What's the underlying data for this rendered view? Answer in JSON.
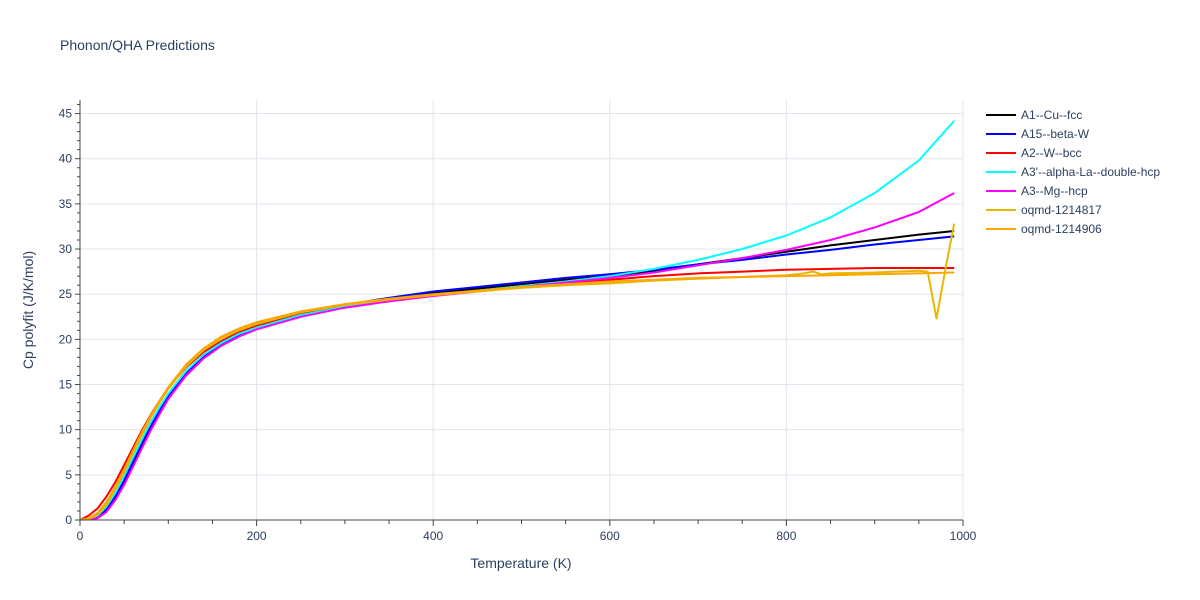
{
  "chart_data": {
    "type": "line",
    "title": "Phonon/QHA Predictions",
    "xlabel": "Temperature (K)",
    "ylabel": "Cp polyfit (J/K/mol)",
    "xlim": [
      0,
      1000
    ],
    "ylim": [
      0,
      46.5
    ],
    "x_ticks": [
      0,
      200,
      400,
      600,
      800,
      1000
    ],
    "y_ticks": [
      0,
      5,
      10,
      15,
      20,
      25,
      30,
      35,
      40,
      45
    ],
    "grid": true,
    "legend_position": "right",
    "series": [
      {
        "name": "A1--Cu--fcc",
        "color": "#000000",
        "x": [
          0,
          10,
          20,
          30,
          40,
          50,
          60,
          70,
          80,
          90,
          100,
          120,
          140,
          160,
          180,
          200,
          250,
          300,
          350,
          400,
          450,
          500,
          550,
          600,
          650,
          700,
          750,
          800,
          850,
          900,
          950,
          990
        ],
        "y": [
          0,
          0.05,
          0.3,
          1.1,
          2.5,
          4.3,
          6.3,
          8.3,
          10.2,
          11.9,
          13.5,
          16.0,
          17.9,
          19.3,
          20.4,
          21.2,
          22.7,
          23.7,
          24.4,
          25.1,
          25.6,
          26.1,
          26.6,
          27.0,
          27.6,
          28.3,
          29.0,
          29.7,
          30.4,
          31.0,
          31.6,
          32.0
        ]
      },
      {
        "name": "A15--beta-W",
        "color": "#0000ff",
        "x": [
          0,
          10,
          20,
          30,
          40,
          50,
          60,
          70,
          80,
          90,
          100,
          120,
          140,
          160,
          180,
          200,
          250,
          300,
          350,
          400,
          450,
          500,
          550,
          600,
          650,
          700,
          750,
          800,
          850,
          900,
          950,
          990
        ],
        "y": [
          0,
          0.05,
          0.3,
          1.2,
          2.6,
          4.4,
          6.5,
          8.5,
          10.4,
          12.1,
          13.7,
          16.2,
          18.1,
          19.5,
          20.5,
          21.3,
          22.8,
          23.8,
          24.6,
          25.3,
          25.8,
          26.3,
          26.8,
          27.2,
          27.7,
          28.3,
          28.8,
          29.4,
          29.9,
          30.5,
          31.0,
          31.4
        ]
      },
      {
        "name": "A2--W--bcc",
        "color": "#ff0000",
        "x": [
          0,
          10,
          20,
          30,
          40,
          50,
          60,
          70,
          80,
          90,
          100,
          120,
          140,
          160,
          180,
          200,
          250,
          300,
          350,
          400,
          450,
          500,
          550,
          600,
          650,
          700,
          750,
          800,
          850,
          900,
          950,
          990
        ],
        "y": [
          0,
          0.5,
          1.3,
          2.6,
          4.2,
          6.1,
          8.0,
          9.9,
          11.6,
          13.2,
          14.6,
          16.9,
          18.6,
          19.8,
          20.8,
          21.5,
          22.9,
          23.8,
          24.4,
          24.9,
          25.4,
          25.8,
          26.2,
          26.6,
          27.0,
          27.3,
          27.5,
          27.7,
          27.8,
          27.9,
          27.9,
          27.9
        ]
      },
      {
        "name": "A3'--alpha-La--double-hcp",
        "color": "#00ffff",
        "x": [
          0,
          10,
          20,
          30,
          40,
          50,
          60,
          70,
          80,
          90,
          100,
          120,
          140,
          160,
          180,
          200,
          250,
          300,
          350,
          400,
          450,
          500,
          550,
          600,
          650,
          700,
          750,
          800,
          850,
          900,
          950,
          990
        ],
        "y": [
          0,
          0.1,
          0.5,
          1.5,
          3.0,
          4.9,
          6.9,
          8.9,
          10.8,
          12.5,
          14.0,
          16.5,
          18.3,
          19.6,
          20.6,
          21.3,
          22.7,
          23.6,
          24.3,
          24.9,
          25.4,
          25.9,
          26.4,
          27.0,
          27.8,
          28.8,
          30.0,
          31.5,
          33.5,
          36.2,
          39.8,
          44.2
        ]
      },
      {
        "name": "A3--Mg--hcp",
        "color": "#ff00ff",
        "x": [
          0,
          10,
          20,
          30,
          40,
          50,
          60,
          70,
          80,
          90,
          100,
          120,
          140,
          160,
          180,
          200,
          250,
          300,
          350,
          400,
          450,
          500,
          550,
          600,
          650,
          700,
          750,
          800,
          850,
          900,
          950,
          990
        ],
        "y": [
          0,
          0.05,
          0.2,
          0.9,
          2.2,
          3.9,
          5.9,
          7.9,
          9.9,
          11.7,
          13.4,
          16.0,
          17.9,
          19.3,
          20.3,
          21.1,
          22.5,
          23.5,
          24.2,
          24.8,
          25.3,
          25.8,
          26.3,
          26.8,
          27.4,
          28.2,
          29.0,
          29.9,
          31.0,
          32.4,
          34.1,
          36.2
        ]
      },
      {
        "name": "oqmd-1214817",
        "color": "#e6b800",
        "x": [
          0,
          10,
          20,
          30,
          40,
          50,
          60,
          70,
          80,
          90,
          100,
          120,
          140,
          160,
          180,
          200,
          250,
          300,
          350,
          400,
          450,
          500,
          550,
          600,
          650,
          700,
          750,
          800,
          820,
          830,
          840,
          850,
          900,
          950,
          960,
          970,
          980,
          990
        ],
        "y": [
          0,
          0.1,
          0.6,
          1.7,
          3.4,
          5.3,
          7.4,
          9.4,
          11.3,
          13.0,
          14.5,
          17.0,
          18.8,
          20.1,
          21.0,
          21.7,
          23.0,
          23.8,
          24.4,
          24.9,
          25.3,
          25.7,
          26.0,
          26.2,
          26.5,
          26.7,
          26.9,
          27.1,
          27.3,
          27.5,
          27.2,
          27.3,
          27.4,
          27.6,
          27.5,
          22.3,
          27.7,
          32.8
        ]
      },
      {
        "name": "oqmd-1214906",
        "color": "#ffa500",
        "x": [
          0,
          10,
          20,
          30,
          40,
          50,
          60,
          70,
          80,
          90,
          100,
          120,
          140,
          160,
          180,
          200,
          250,
          300,
          350,
          400,
          450,
          500,
          550,
          600,
          650,
          700,
          750,
          800,
          850,
          900,
          950,
          990
        ],
        "y": [
          0,
          0.2,
          0.8,
          2.0,
          3.7,
          5.6,
          7.7,
          9.7,
          11.5,
          13.2,
          14.7,
          17.2,
          19.0,
          20.3,
          21.2,
          21.9,
          23.1,
          23.9,
          24.5,
          25.0,
          25.4,
          25.8,
          26.1,
          26.4,
          26.6,
          26.8,
          26.9,
          27.0,
          27.1,
          27.2,
          27.3,
          27.4
        ]
      }
    ]
  }
}
